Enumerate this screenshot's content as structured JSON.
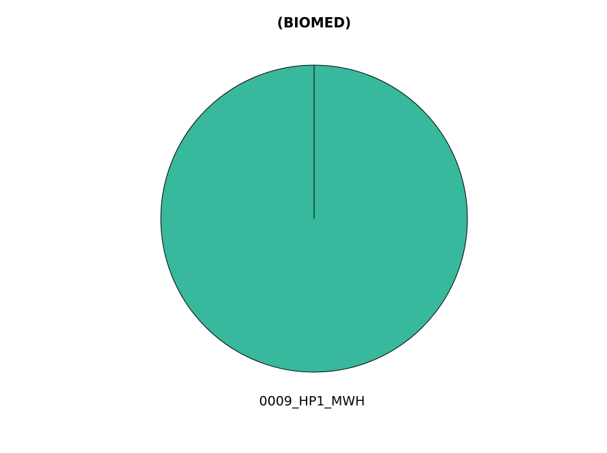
{
  "chart_data": {
    "type": "pie",
    "title": "(BIOMED)",
    "slices": [
      {
        "label": "0009_HP1_MWH",
        "value": 100,
        "color": "#38b89d"
      }
    ],
    "edge_color": "#000000",
    "start_angle_deg": 90,
    "direction": "clockwise"
  }
}
